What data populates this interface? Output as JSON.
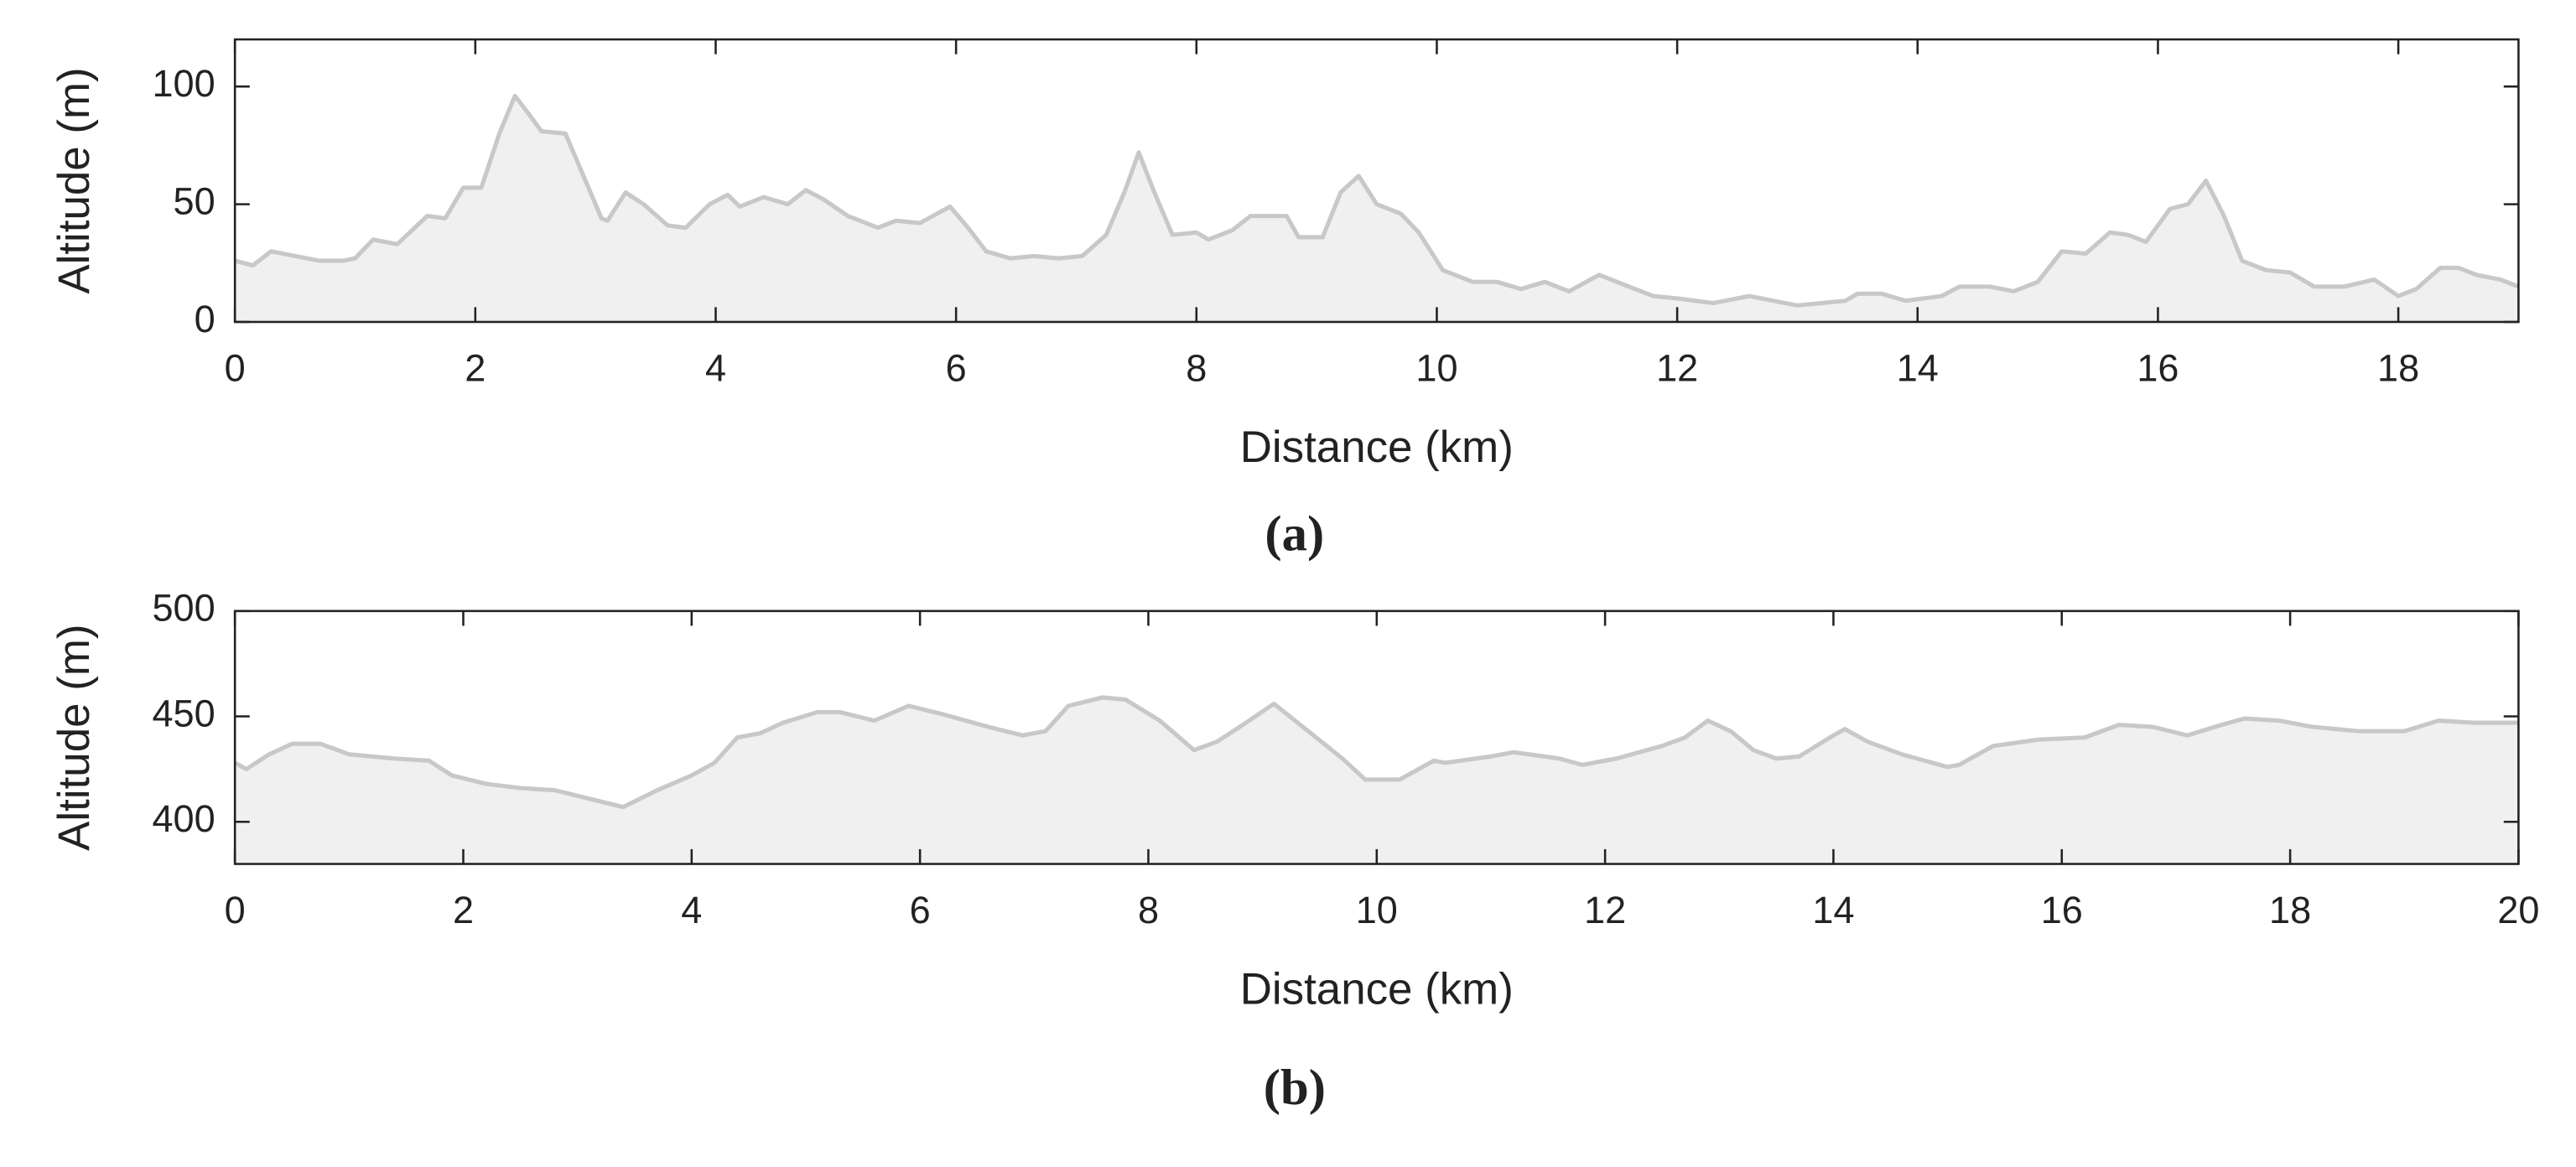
{
  "chart_data": [
    {
      "type": "area",
      "color": "#c8c8c8",
      "fill": "#f0f0f0",
      "xlabel": "Distance (km)",
      "ylabel": "Altitude (m)",
      "caption": "(a)",
      "xlim": [
        0,
        19
      ],
      "ylim": [
        0,
        120
      ],
      "xticks": [
        0,
        2,
        4,
        6,
        8,
        10,
        12,
        14,
        16,
        18
      ],
      "yticks": [
        0,
        50,
        100
      ],
      "x": [
        0,
        0.15,
        0.3,
        0.5,
        0.7,
        0.9,
        1.0,
        1.15,
        1.35,
        1.6,
        1.75,
        1.9,
        2.05,
        2.2,
        2.33,
        2.45,
        2.55,
        2.75,
        2.9,
        3.05,
        3.1,
        3.25,
        3.4,
        3.6,
        3.75,
        3.95,
        4.1,
        4.2,
        4.4,
        4.6,
        4.75,
        4.9,
        5.1,
        5.35,
        5.5,
        5.7,
        5.95,
        6.1,
        6.25,
        6.45,
        6.65,
        6.85,
        7.05,
        7.25,
        7.4,
        7.52,
        7.65,
        7.8,
        8.0,
        8.1,
        8.3,
        8.45,
        8.55,
        8.75,
        8.85,
        9.05,
        9.2,
        9.35,
        9.5,
        9.7,
        9.85,
        10.05,
        10.3,
        10.5,
        10.7,
        10.9,
        11.1,
        11.35,
        11.55,
        11.8,
        12.0,
        12.3,
        12.6,
        12.8,
        13.0,
        13.2,
        13.4,
        13.5,
        13.7,
        13.9,
        14.2,
        14.35,
        14.6,
        14.8,
        15.0,
        15.2,
        15.4,
        15.6,
        15.75,
        15.9,
        16.1,
        16.25,
        16.4,
        16.55,
        16.7,
        16.9,
        17.1,
        17.3,
        17.55,
        17.8,
        18.0,
        18.15,
        18.35,
        18.5,
        18.65,
        18.85,
        19.0
      ],
      "values": [
        26,
        24,
        30,
        28,
        26,
        26,
        27,
        35,
        33,
        45,
        44,
        57,
        57,
        80,
        96,
        88,
        81,
        80,
        62,
        44,
        43,
        55,
        50,
        41,
        40,
        50,
        54,
        49,
        53,
        50,
        56,
        52,
        45,
        40,
        43,
        42,
        49,
        40,
        30,
        27,
        28,
        27,
        28,
        37,
        55,
        72,
        55,
        37,
        38,
        35,
        39,
        45,
        45,
        45,
        36,
        36,
        55,
        62,
        50,
        46,
        38,
        22,
        17,
        17,
        14,
        17,
        13,
        20,
        16,
        11,
        10,
        8,
        11,
        9,
        7,
        8,
        9,
        12,
        12,
        9,
        11,
        15,
        15,
        13,
        17,
        30,
        29,
        38,
        37,
        34,
        48,
        50,
        60,
        45,
        26,
        22,
        21,
        15,
        15,
        18,
        11,
        14,
        23,
        23,
        20,
        18,
        15
      ]
    },
    {
      "type": "area",
      "color": "#c8c8c8",
      "fill": "#f0f0f0",
      "xlabel": "Distance (km)",
      "ylabel": "Altitude (m)",
      "caption": "(b)",
      "xlim": [
        0,
        20
      ],
      "ylim": [
        380,
        500
      ],
      "xticks": [
        0,
        2,
        4,
        6,
        8,
        10,
        12,
        14,
        16,
        18,
        20
      ],
      "yticks": [
        400,
        450,
        500
      ],
      "x": [
        0,
        0.1,
        0.3,
        0.5,
        0.75,
        1.0,
        1.4,
        1.7,
        1.9,
        2.2,
        2.5,
        2.8,
        3.1,
        3.4,
        3.7,
        4.0,
        4.2,
        4.4,
        4.6,
        4.8,
        5.1,
        5.3,
        5.6,
        5.9,
        6.2,
        6.6,
        6.9,
        7.1,
        7.3,
        7.6,
        7.8,
        8.1,
        8.4,
        8.6,
        8.8,
        9.1,
        9.4,
        9.7,
        9.9,
        10.2,
        10.5,
        10.6,
        11.0,
        11.2,
        11.6,
        11.8,
        12.1,
        12.5,
        12.7,
        12.9,
        13.1,
        13.3,
        13.5,
        13.7,
        14.0,
        14.1,
        14.3,
        14.6,
        15.0,
        15.1,
        15.4,
        15.8,
        16.2,
        16.5,
        16.8,
        17.1,
        17.4,
        17.6,
        17.9,
        18.2,
        18.6,
        19.0,
        19.3,
        19.6,
        20.0
      ],
      "values": [
        428,
        425,
        432,
        437,
        437,
        432,
        430,
        429,
        422,
        418,
        416,
        415,
        411,
        407,
        415,
        422,
        428,
        440,
        442,
        447,
        452,
        452,
        448,
        455,
        451,
        445,
        441,
        443,
        455,
        459,
        458,
        448,
        434,
        438,
        445,
        456,
        443,
        430,
        420,
        420,
        429,
        428,
        431,
        433,
        430,
        427,
        430,
        436,
        440,
        448,
        443,
        434,
        430,
        431,
        441,
        444,
        438,
        432,
        426,
        427,
        436,
        439,
        440,
        446,
        445,
        441,
        446,
        449,
        448,
        445,
        443,
        443,
        448,
        447,
        447
      ]
    }
  ]
}
